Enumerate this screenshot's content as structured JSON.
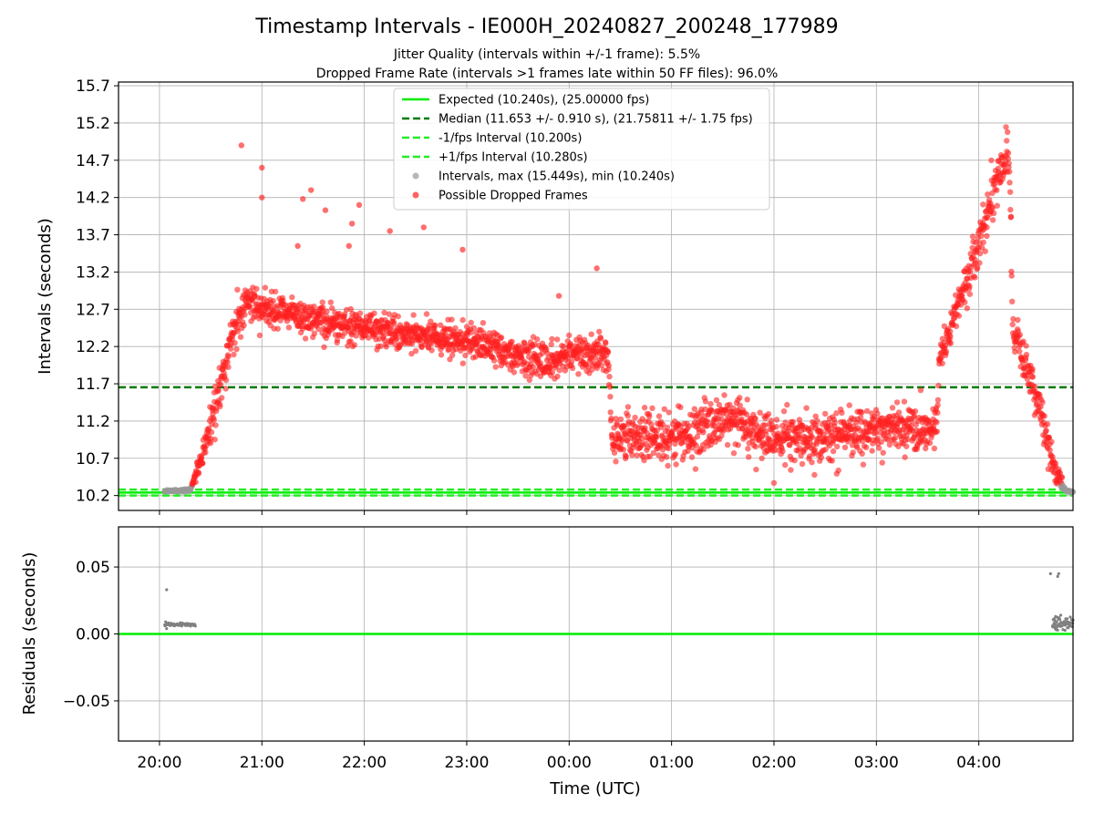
{
  "figure": {
    "title": "Timestamp Intervals - IE000H_20240827_200248_177989",
    "subtitle_1": "Jitter Quality (intervals within +/-1 frame): 5.5%",
    "subtitle_2": "Dropped Frame Rate (intervals >1 frames late within 50 FF files): 96.0%",
    "x_axis_label": "Time (UTC)"
  },
  "chart_data": [
    {
      "type": "scatter",
      "name": "intervals",
      "ylabel": "Intervals (seconds)",
      "xlim_hours": [
        19.6,
        28.92
      ],
      "ylim": [
        10.0,
        15.75
      ],
      "y_ticks": [
        10.2,
        10.7,
        11.2,
        11.7,
        12.2,
        12.7,
        13.2,
        13.7,
        14.2,
        14.7,
        15.2,
        15.7
      ],
      "x_ticks": [
        {
          "hour": 20,
          "label": "20:00"
        },
        {
          "hour": 21,
          "label": "21:00"
        },
        {
          "hour": 22,
          "label": "22:00"
        },
        {
          "hour": 23,
          "label": "23:00"
        },
        {
          "hour": 24,
          "label": "00:00"
        },
        {
          "hour": 25,
          "label": "01:00"
        },
        {
          "hour": 26,
          "label": "02:00"
        },
        {
          "hour": 27,
          "label": "03:00"
        },
        {
          "hour": 28,
          "label": "04:00"
        }
      ],
      "grid": true,
      "legend_position": "upper center",
      "reference_lines": [
        {
          "key": "expected",
          "label": "Expected (10.240s), (25.00000 fps)",
          "value": 10.24,
          "color": "#00ee00",
          "style": "solid"
        },
        {
          "key": "median",
          "label": "Median (11.653 +/- 0.910 s), (21.75811 +/- 1.75 fps)",
          "value": 11.653,
          "color": "#007a00",
          "style": "dashed"
        },
        {
          "key": "minus_fps",
          "label": "-1/fps Interval (10.200s)",
          "value": 10.2,
          "color": "#22ee22",
          "style": "dashed"
        },
        {
          "key": "plus_fps",
          "label": "+1/fps Interval (10.280s)",
          "value": 10.28,
          "color": "#22ee22",
          "style": "dashed"
        }
      ],
      "series": [
        {
          "key": "intervals",
          "label": "Intervals, max (15.449s), min (10.240s)",
          "color": "#999999"
        },
        {
          "key": "dropped",
          "label": "Possible Dropped Frames",
          "color": "#ff2020"
        }
      ],
      "trend_profile": [
        {
          "x": 20.05,
          "y": 10.26,
          "spread": 0.01
        },
        {
          "x": 20.3,
          "y": 10.27,
          "spread": 0.02
        },
        {
          "x": 20.42,
          "y": 10.75,
          "spread": 0.15
        },
        {
          "x": 20.55,
          "y": 11.4,
          "spread": 0.25
        },
        {
          "x": 20.7,
          "y": 12.3,
          "spread": 0.25
        },
        {
          "x": 20.85,
          "y": 12.8,
          "spread": 0.25
        },
        {
          "x": 21.0,
          "y": 12.75,
          "spread": 0.22
        },
        {
          "x": 21.5,
          "y": 12.55,
          "spread": 0.2
        },
        {
          "x": 22.0,
          "y": 12.45,
          "spread": 0.2
        },
        {
          "x": 22.5,
          "y": 12.35,
          "spread": 0.2
        },
        {
          "x": 23.0,
          "y": 12.25,
          "spread": 0.2
        },
        {
          "x": 23.5,
          "y": 12.1,
          "spread": 0.2
        },
        {
          "x": 23.8,
          "y": 12.0,
          "spread": 0.22
        },
        {
          "x": 24.0,
          "y": 12.1,
          "spread": 0.22
        },
        {
          "x": 24.38,
          "y": 12.1,
          "spread": 0.22
        },
        {
          "x": 24.42,
          "y": 11.0,
          "spread": 0.3
        },
        {
          "x": 25.0,
          "y": 10.95,
          "spread": 0.3
        },
        {
          "x": 25.5,
          "y": 11.2,
          "spread": 0.3
        },
        {
          "x": 26.0,
          "y": 10.95,
          "spread": 0.3
        },
        {
          "x": 26.5,
          "y": 11.0,
          "spread": 0.3
        },
        {
          "x": 27.0,
          "y": 11.1,
          "spread": 0.3
        },
        {
          "x": 27.58,
          "y": 11.1,
          "spread": 0.3
        },
        {
          "x": 27.62,
          "y": 12.0,
          "spread": 0.2
        },
        {
          "x": 27.8,
          "y": 12.8,
          "spread": 0.25
        },
        {
          "x": 28.0,
          "y": 13.6,
          "spread": 0.3
        },
        {
          "x": 28.2,
          "y": 14.5,
          "spread": 0.3
        },
        {
          "x": 28.3,
          "y": 14.8,
          "spread": 0.4
        },
        {
          "x": 28.33,
          "y": 12.5,
          "spread": 0.2
        },
        {
          "x": 28.55,
          "y": 11.6,
          "spread": 0.3
        },
        {
          "x": 28.75,
          "y": 10.5,
          "spread": 0.15
        },
        {
          "x": 28.85,
          "y": 10.26,
          "spread": 0.02
        },
        {
          "x": 28.92,
          "y": 10.25,
          "spread": 0.01
        }
      ],
      "outliers": [
        {
          "x": 20.8,
          "y": 14.9
        },
        {
          "x": 21.0,
          "y": 14.6
        },
        {
          "x": 21.0,
          "y": 14.2
        },
        {
          "x": 21.4,
          "y": 14.18
        },
        {
          "x": 21.48,
          "y": 14.3
        },
        {
          "x": 21.62,
          "y": 14.03
        },
        {
          "x": 21.88,
          "y": 13.85
        },
        {
          "x": 21.95,
          "y": 14.1
        },
        {
          "x": 22.25,
          "y": 13.75
        },
        {
          "x": 22.58,
          "y": 13.8
        },
        {
          "x": 22.96,
          "y": 13.5
        },
        {
          "x": 23.9,
          "y": 12.88
        },
        {
          "x": 24.27,
          "y": 13.25
        },
        {
          "x": 21.35,
          "y": 13.55
        },
        {
          "x": 21.85,
          "y": 13.55
        }
      ]
    },
    {
      "type": "scatter",
      "name": "residuals",
      "ylabel": "Residuals (seconds)",
      "xlim_hours": [
        19.6,
        28.92
      ],
      "ylim": [
        -0.08,
        0.08
      ],
      "y_ticks": [
        {
          "value": 0.05,
          "label": "0.05"
        },
        {
          "value": 0.0,
          "label": "0.00"
        },
        {
          "value": -0.05,
          "label": "−0.05"
        }
      ],
      "zero_line_color": "#00ee00",
      "point_color": "#808080",
      "grid": true,
      "clusters": [
        {
          "x_start": 20.05,
          "x_end": 20.35,
          "y": 0.007,
          "spread": 0.001
        },
        {
          "x_start": 28.72,
          "x_end": 28.92,
          "y": 0.008,
          "spread": 0.004
        }
      ],
      "outliers": [
        {
          "x": 20.07,
          "y": 0.033
        },
        {
          "x": 20.07,
          "y": 0.004
        },
        {
          "x": 20.06,
          "y": 0.009
        },
        {
          "x": 28.7,
          "y": 0.045
        },
        {
          "x": 28.77,
          "y": 0.043
        },
        {
          "x": 28.78,
          "y": 0.045
        },
        {
          "x": 28.8,
          "y": 0.014
        },
        {
          "x": 28.75,
          "y": 0.013
        }
      ]
    }
  ]
}
